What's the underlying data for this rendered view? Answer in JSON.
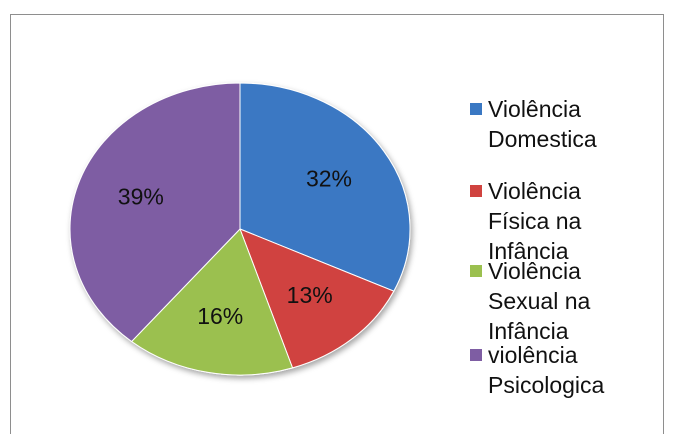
{
  "chart_data": {
    "type": "pie",
    "title": "",
    "categories": [
      "Violência Domestica",
      "Violência Física na Infância",
      "Violência Sexual na Infância",
      "violência Psicologica"
    ],
    "values": [
      32,
      13,
      16,
      39
    ],
    "data_labels": [
      "32%",
      "13%",
      "16%",
      "39%"
    ],
    "colors": [
      "#3a78c3",
      "#d0433f",
      "#9bc04f",
      "#7e5da3"
    ],
    "legend": [
      {
        "label": "Violência\nDomestica",
        "color": "#3a78c3"
      },
      {
        "label": "Violência\nFísica na\nInfância",
        "color": "#d0433f"
      },
      {
        "label": "Violência\nSexual na\nInfância",
        "color": "#9bc04f"
      },
      {
        "label": "violência\nPsicologica",
        "color": "#7e5da3"
      }
    ],
    "legend_position": "right",
    "start_angle_deg": 0,
    "direction": "clockwise"
  }
}
